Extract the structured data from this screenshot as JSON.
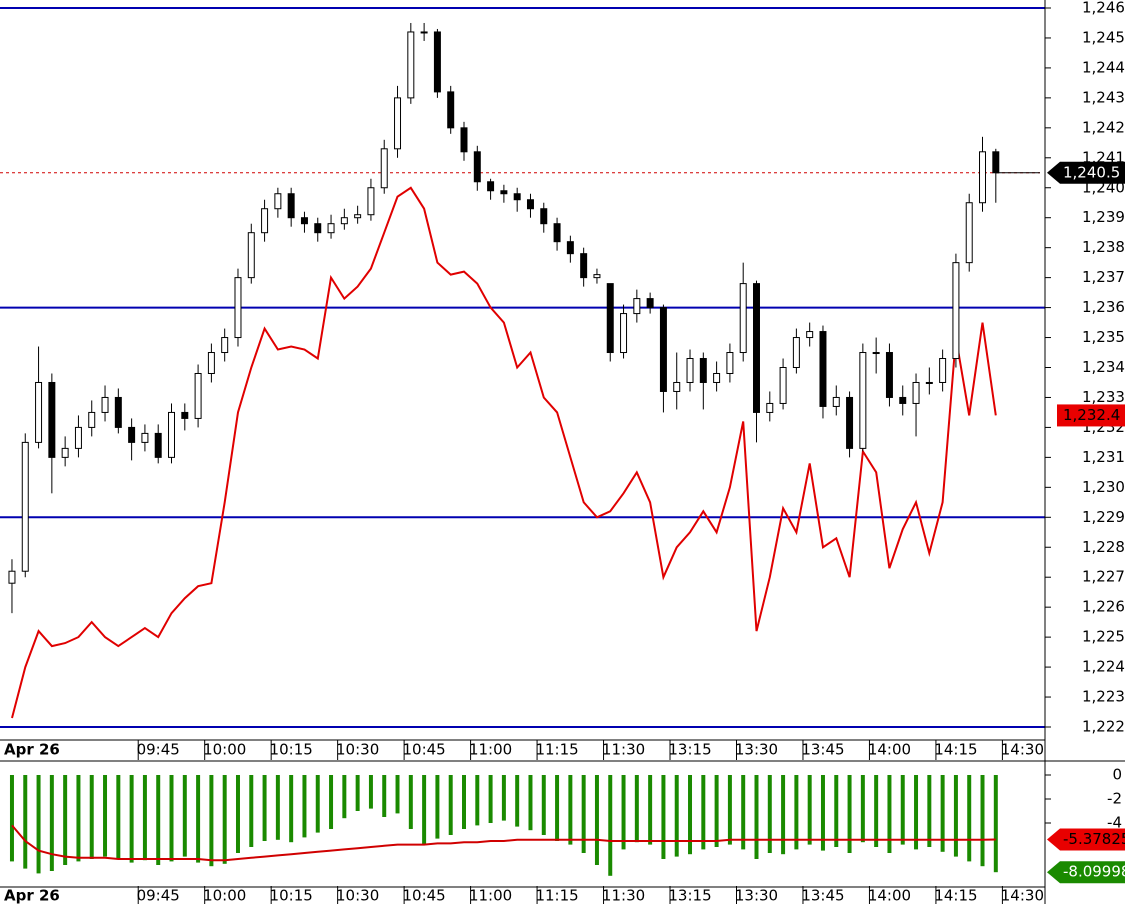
{
  "chart_data": [
    {
      "type": "candlestick",
      "date_label": "Apr 26",
      "xlim": [
        -0.9,
        77.7
      ],
      "xticks": [
        {
          "value": 11,
          "label": "09:45"
        },
        {
          "value": 16,
          "label": "10:00"
        },
        {
          "value": 21,
          "label": "10:15"
        },
        {
          "value": 26,
          "label": "10:30"
        },
        {
          "value": 31,
          "label": "10:45"
        },
        {
          "value": 36,
          "label": "11:00"
        },
        {
          "value": 41,
          "label": "11:15"
        },
        {
          "value": 46,
          "label": "11:30"
        },
        {
          "value": 51,
          "label": "13:15"
        },
        {
          "value": 56,
          "label": "13:30"
        },
        {
          "value": 61,
          "label": "13:45"
        },
        {
          "value": 66,
          "label": "14:00"
        },
        {
          "value": 71,
          "label": "14:15"
        },
        {
          "value": 76,
          "label": "14:30"
        }
      ],
      "grid": true,
      "ylim": [
        1222,
        1246
      ],
      "yticks": [
        {
          "value": 1222,
          "label": "1,222"
        },
        {
          "value": 1223,
          "label": "1,223"
        },
        {
          "value": 1224,
          "label": "1,224"
        },
        {
          "value": 1225,
          "label": "1,225"
        },
        {
          "value": 1226,
          "label": "1,226"
        },
        {
          "value": 1227,
          "label": "1,227"
        },
        {
          "value": 1228,
          "label": "1,228"
        },
        {
          "value": 1229,
          "label": "1,229"
        },
        {
          "value": 1230,
          "label": "1,230"
        },
        {
          "value": 1231,
          "label": "1,231"
        },
        {
          "value": 1232,
          "label": "1,232"
        },
        {
          "value": 1233,
          "label": "1,233"
        },
        {
          "value": 1234,
          "label": "1,234"
        },
        {
          "value": 1235,
          "label": "1,235"
        },
        {
          "value": 1236,
          "label": "1,236"
        },
        {
          "value": 1237,
          "label": "1,237"
        },
        {
          "value": 1238,
          "label": "1,238"
        },
        {
          "value": 1239,
          "label": "1,239"
        },
        {
          "value": 1240,
          "label": "1,240"
        },
        {
          "value": 1241,
          "label": "1,241"
        },
        {
          "value": 1242,
          "label": "1,242"
        },
        {
          "value": 1243,
          "label": "1,243"
        },
        {
          "value": 1244,
          "label": "1,244"
        },
        {
          "value": 1245,
          "label": "1,245"
        },
        {
          "value": 1246,
          "label": "1,246"
        }
      ],
      "hlines": [
        1246,
        1236,
        1229,
        1222
      ],
      "hline_color": "#0000b0",
      "up_color": "#ffffff",
      "down_color": "#000000",
      "open": [
        1226.8,
        1227.2,
        1231.5,
        1233.5,
        1231,
        1231.3,
        1232,
        1232.5,
        1233,
        1232,
        1231.5,
        1231.8,
        1231,
        1232.5,
        1232.3,
        1233.8,
        1234.5,
        1235,
        1237,
        1238.5,
        1239.3,
        1239.8,
        1239,
        1238.8,
        1238.5,
        1238.8,
        1239,
        1239.1,
        1240,
        1241.3,
        1243,
        1245.2,
        1245.2,
        1243.2,
        1242,
        1241.2,
        1240.2,
        1239.9,
        1239.8,
        1239.6,
        1239.3,
        1238.8,
        1238.2,
        1237.8,
        1237,
        1236.8,
        1234.5,
        1235.8,
        1236.3,
        1236,
        1233.2,
        1233.5,
        1234.3,
        1233.5,
        1233.8,
        1234.5,
        1236.8,
        1232.5,
        1232.8,
        1234,
        1235,
        1235.2,
        1232.7,
        1233,
        1231.3,
        1234.5,
        1234.5,
        1233,
        1232.8,
        1233.5,
        1233.5,
        1234.3,
        1237.5,
        1239.5,
        1241.2
      ],
      "high": [
        1227.6,
        1231.8,
        1234.7,
        1233.8,
        1231.7,
        1232.4,
        1232.9,
        1233.4,
        1233.3,
        1232.3,
        1232.1,
        1232.1,
        1232.8,
        1232.8,
        1234.1,
        1234.8,
        1235.3,
        1237.3,
        1238.8,
        1239.6,
        1240,
        1240,
        1239.2,
        1239,
        1239.1,
        1239.3,
        1239.4,
        1240.3,
        1241.6,
        1243.4,
        1245.5,
        1245.5,
        1245.3,
        1243.4,
        1242.2,
        1241.4,
        1240.3,
        1240.1,
        1240,
        1239.8,
        1239.5,
        1239,
        1238.4,
        1238,
        1237.3,
        1236.8,
        1236.1,
        1236.6,
        1236.5,
        1236.1,
        1234.5,
        1234.6,
        1234.5,
        1234.2,
        1234.8,
        1237.5,
        1236.9,
        1233.2,
        1234.3,
        1235.3,
        1235.5,
        1235.4,
        1233.4,
        1233.2,
        1234.8,
        1235,
        1234.8,
        1233.4,
        1233.8,
        1234,
        1234.6,
        1237.8,
        1239.8,
        1241.7,
        1241.3
      ],
      "low": [
        1225.8,
        1227,
        1231.3,
        1229.8,
        1230.7,
        1231,
        1231.7,
        1232.2,
        1231.8,
        1230.9,
        1231.2,
        1230.8,
        1230.8,
        1231.9,
        1232,
        1233.5,
        1234.2,
        1234.7,
        1236.8,
        1238.2,
        1239,
        1238.7,
        1238.5,
        1238.2,
        1238.3,
        1238.6,
        1238.8,
        1238.9,
        1239.8,
        1241,
        1242.8,
        1244.9,
        1243,
        1241.8,
        1240.9,
        1239.9,
        1239.6,
        1239.5,
        1239.2,
        1239,
        1238.5,
        1237.9,
        1237.5,
        1236.7,
        1236.8,
        1234.2,
        1234.3,
        1235.5,
        1235.8,
        1232.5,
        1232.6,
        1233.2,
        1232.6,
        1233.2,
        1233.5,
        1234.2,
        1231.5,
        1232.2,
        1232.6,
        1233.8,
        1234.7,
        1232.3,
        1232.4,
        1231,
        1231.2,
        1233.8,
        1232.7,
        1232.4,
        1231.7,
        1233.1,
        1233.2,
        1234,
        1237.2,
        1239.2,
        1239.5
      ],
      "close": [
        1227.2,
        1231.5,
        1233.5,
        1231,
        1231.3,
        1232,
        1232.5,
        1233,
        1232,
        1231.5,
        1231.8,
        1231,
        1232.5,
        1232.3,
        1233.8,
        1234.5,
        1235,
        1237,
        1238.5,
        1239.3,
        1239.8,
        1239,
        1238.8,
        1238.5,
        1238.8,
        1239,
        1239.1,
        1240,
        1241.3,
        1243,
        1245.2,
        1245.2,
        1243.2,
        1242,
        1241.2,
        1240.2,
        1239.9,
        1239.8,
        1239.6,
        1239.3,
        1238.8,
        1238.2,
        1237.8,
        1237,
        1237.1,
        1234.5,
        1235.8,
        1236.3,
        1236,
        1233.2,
        1233.5,
        1234.3,
        1233.5,
        1233.8,
        1234.5,
        1236.8,
        1232.5,
        1232.8,
        1234,
        1235,
        1235.2,
        1232.7,
        1233,
        1231.3,
        1234.5,
        1234.5,
        1233,
        1232.8,
        1233.5,
        1233.5,
        1234.3,
        1237.5,
        1239.5,
        1241.2,
        1240.5
      ],
      "last_price": {
        "value": 1240.5,
        "label": "1,240.5"
      },
      "series": [
        {
          "color": "#e00000",
          "last_label": "1,232.4",
          "values": [
            1222.3,
            1224,
            1225.2,
            1224.7,
            1224.8,
            1225,
            1225.5,
            1225,
            1224.7,
            1225,
            1225.3,
            1225,
            1225.8,
            1226.3,
            1226.7,
            1226.8,
            1229.5,
            1232.5,
            1234,
            1235.3,
            1234.6,
            1234.7,
            1234.6,
            1234.3,
            1237,
            1236.3,
            1236.7,
            1237.3,
            1238.5,
            1239.7,
            1240,
            1239.3,
            1237.5,
            1237.1,
            1237.2,
            1236.8,
            1236,
            1235.5,
            1234,
            1234.5,
            1233,
            1232.5,
            1231,
            1229.5,
            1229,
            1229.2,
            1229.8,
            1230.5,
            1229.5,
            1227,
            1228,
            1228.5,
            1229.2,
            1228.5,
            1230,
            1232.2,
            1225.2,
            1227,
            1229.3,
            1228.5,
            1230.8,
            1228,
            1228.3,
            1227,
            1231.2,
            1230.5,
            1227.3,
            1228.6,
            1229.5,
            1227.8,
            1229.5,
            1235,
            1232.4,
            1235.5,
            1232.4
          ]
        }
      ]
    },
    {
      "type": "bar",
      "ylim": [
        -9.5,
        1
      ],
      "yticks": [
        0,
        -2,
        -4
      ],
      "color": "#1a8a00",
      "last_label": "-8.09998",
      "values": [
        -7.2,
        -7.8,
        -8.2,
        -8,
        -7.5,
        -7.2,
        -7,
        -6.8,
        -7,
        -7.3,
        -7.1,
        -7.5,
        -7.2,
        -6.8,
        -7.3,
        -7.6,
        -7.4,
        -6.5,
        -6,
        -5.5,
        -5.4,
        -5.6,
        -5.2,
        -4.8,
        -4.5,
        -3.6,
        -3,
        -2.8,
        -3.5,
        -3.2,
        -4.5,
        -5.8,
        -5.3,
        -5,
        -4.5,
        -4.2,
        -4,
        -3.8,
        -4.3,
        -4.6,
        -5,
        -5.5,
        -5.8,
        -6.5,
        -7.5,
        -8.4,
        -6.2,
        -5.6,
        -5.8,
        -7,
        -6.8,
        -6.6,
        -6.2,
        -6,
        -5.8,
        -6.2,
        -7,
        -6.5,
        -6.6,
        -6.2,
        -5.8,
        -6.3,
        -6,
        -6.5,
        -5.6,
        -6,
        -6.5,
        -5.8,
        -6.2,
        -6,
        -6.4,
        -6.8,
        -7.2,
        -7.6,
        -8.09998
      ],
      "series": [
        {
          "color": "#d00000",
          "last_label": "-5.37825",
          "values": [
            -4.2,
            -5.5,
            -6.3,
            -6.6,
            -6.8,
            -6.9,
            -6.9,
            -6.9,
            -7,
            -7,
            -7,
            -7,
            -7,
            -7,
            -7,
            -7.1,
            -7.1,
            -7,
            -6.9,
            -6.8,
            -6.7,
            -6.6,
            -6.5,
            -6.4,
            -6.3,
            -6.2,
            -6.1,
            -6,
            -5.9,
            -5.8,
            -5.8,
            -5.8,
            -5.7,
            -5.7,
            -5.6,
            -5.6,
            -5.5,
            -5.5,
            -5.4,
            -5.4,
            -5.4,
            -5.4,
            -5.4,
            -5.4,
            -5.4,
            -5.5,
            -5.5,
            -5.5,
            -5.5,
            -5.5,
            -5.5,
            -5.5,
            -5.5,
            -5.5,
            -5.4,
            -5.4,
            -5.4,
            -5.4,
            -5.4,
            -5.4,
            -5.4,
            -5.4,
            -5.4,
            -5.4,
            -5.4,
            -5.4,
            -5.4,
            -5.4,
            -5.4,
            -5.4,
            -5.4,
            -5.4,
            -5.4,
            -5.4,
            -5.37825
          ]
        }
      ]
    }
  ]
}
